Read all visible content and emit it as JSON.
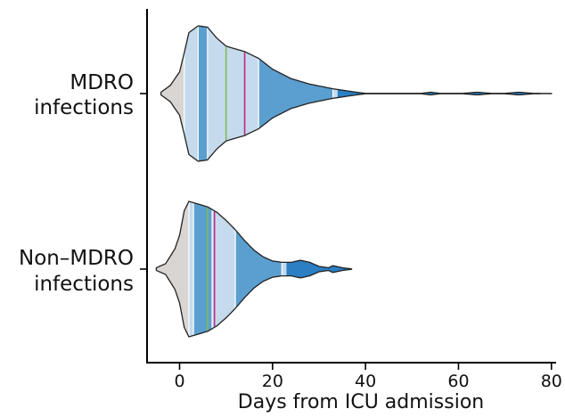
{
  "chart_data": {
    "type": "violin",
    "orientation": "horizontal",
    "xlabel": "Days from ICU admission",
    "xlim": [
      -7,
      81
    ],
    "x_ticks": [
      0,
      20,
      40,
      60,
      80
    ],
    "x_tick_labels": [
      "0",
      "20",
      "40",
      "60",
      "80"
    ],
    "groups": [
      {
        "label_lines": [
          "MDRO",
          "infections"
        ],
        "range": [
          -4,
          80
        ],
        "median": 10,
        "mean": 14,
        "band_edges": [
          1,
          4,
          6,
          17,
          33
        ],
        "profile": [
          [
            -4,
            0.02
          ],
          [
            -2,
            0.12
          ],
          [
            0,
            0.32
          ],
          [
            1,
            0.6
          ],
          [
            2,
            0.9
          ],
          [
            4,
            1.0
          ],
          [
            6,
            0.98
          ],
          [
            8,
            0.82
          ],
          [
            10,
            0.7
          ],
          [
            12,
            0.66
          ],
          [
            14,
            0.62
          ],
          [
            17,
            0.52
          ],
          [
            20,
            0.36
          ],
          [
            24,
            0.22
          ],
          [
            28,
            0.14
          ],
          [
            33,
            0.07
          ],
          [
            35,
            0.05
          ],
          [
            38,
            0.02
          ],
          [
            40,
            0.003
          ],
          [
            52,
            0.003
          ],
          [
            54,
            0.02
          ],
          [
            56,
            0.003
          ],
          [
            61,
            0.003
          ],
          [
            64,
            0.02
          ],
          [
            67,
            0.003
          ],
          [
            70,
            0.003
          ],
          [
            73,
            0.02
          ],
          [
            76,
            0.003
          ],
          [
            80,
            0.001
          ]
        ]
      },
      {
        "label_lines": [
          "Non–MDRO",
          "infections"
        ],
        "range": [
          -5,
          37
        ],
        "median": 6,
        "mean": 7.5,
        "band_edges": [
          2,
          3,
          7,
          12,
          22
        ],
        "profile": [
          [
            -5,
            0.02
          ],
          [
            -3,
            0.08
          ],
          [
            -1,
            0.3
          ],
          [
            0,
            0.5
          ],
          [
            1,
            0.86
          ],
          [
            2,
            1.0
          ],
          [
            4,
            0.96
          ],
          [
            6,
            0.92
          ],
          [
            8,
            0.84
          ],
          [
            10,
            0.72
          ],
          [
            12,
            0.58
          ],
          [
            14,
            0.42
          ],
          [
            16,
            0.28
          ],
          [
            18,
            0.18
          ],
          [
            20,
            0.12
          ],
          [
            22,
            0.1
          ],
          [
            24,
            0.1
          ],
          [
            26,
            0.13
          ],
          [
            28,
            0.1
          ],
          [
            30,
            0.04
          ],
          [
            32,
            0.02
          ],
          [
            33,
            0.05
          ],
          [
            35,
            0.02
          ],
          [
            37,
            0.003
          ]
        ]
      }
    ],
    "colors": {
      "outer_tail": "#d9d5d3",
      "light_band": "#c5dbed",
      "dark_band": "#5b9fd0",
      "tail_blue": "#2b7fc2",
      "median_line": "#7dbb4f",
      "mean_line": "#c0288a",
      "outline": "#222222"
    }
  }
}
